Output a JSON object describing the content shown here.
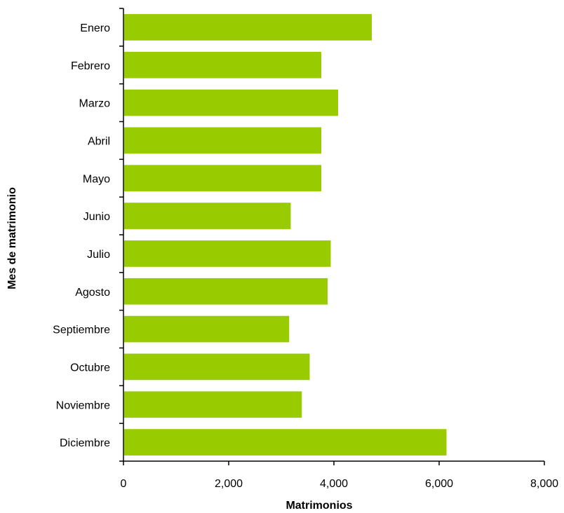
{
  "chart_data": {
    "type": "bar",
    "orientation": "horizontal",
    "categories": [
      "Enero",
      "Febrero",
      "Marzo",
      "Abril",
      "Mayo",
      "Junio",
      "Julio",
      "Agosto",
      "Septiembre",
      "Octubre",
      "Noviembre",
      "Diciembre"
    ],
    "values": [
      4720,
      3760,
      4080,
      3760,
      3760,
      3180,
      3940,
      3880,
      3150,
      3540,
      3390,
      6140
    ],
    "xlabel": "Matrimonios",
    "ylabel": "Mes de matrimonio",
    "xlim": [
      0,
      8000
    ],
    "xticks": [
      0,
      2000,
      4000,
      6000,
      8000
    ],
    "xtick_labels": [
      "0",
      "2,000",
      "4,000",
      "6,000",
      "8,000"
    ],
    "grid": false,
    "legend": "none",
    "bar_color": "#99cc00"
  }
}
